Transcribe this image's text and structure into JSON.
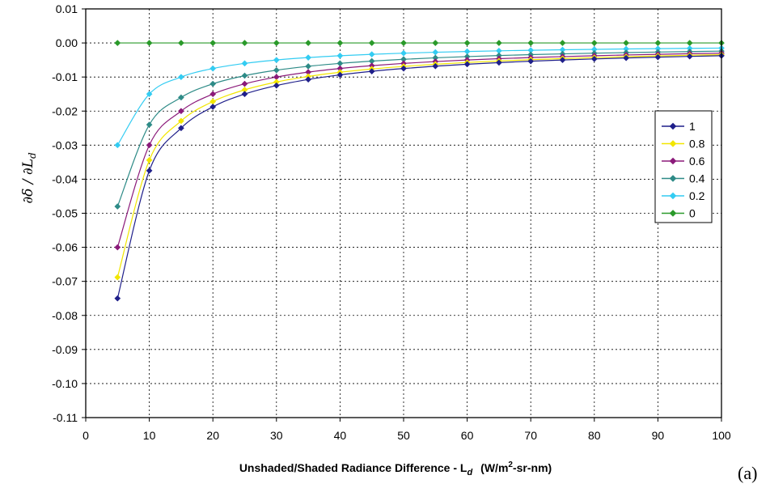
{
  "chart_data": {
    "type": "line",
    "xlabel": "Unshaded/Shaded Radiance Difference - L",
    "xlabel_sub": "d",
    "xlabel_unit_pre": "(W/m",
    "xlabel_unit_sup": "2",
    "xlabel_unit_post": "-sr-nm)",
    "ylabel": "∂δ / ∂L",
    "ylabel_sub": "d",
    "panel_label": "(a)",
    "xlim": [
      0,
      100
    ],
    "ylim": [
      -0.11,
      0.01
    ],
    "xticks": [
      0,
      10,
      20,
      30,
      40,
      50,
      60,
      70,
      80,
      90,
      100
    ],
    "xtick_labels": [
      "0",
      "10",
      "20",
      "30",
      "40",
      "50",
      "60",
      "70",
      "80",
      "90",
      "100"
    ],
    "yticks": [
      0.01,
      0.0,
      -0.01,
      -0.02,
      -0.03,
      -0.04,
      -0.05,
      -0.06,
      -0.07,
      -0.08,
      -0.09,
      -0.1,
      -0.11
    ],
    "ytick_labels": [
      "0.01",
      "0.00",
      "-0.01",
      "-0.02",
      "-0.03",
      "-0.04",
      "-0.05",
      "-0.06",
      "-0.07",
      "-0.08",
      "-0.09",
      "-0.10",
      "-0.11"
    ],
    "grid": true,
    "legend_position": "right",
    "x": [
      5,
      10,
      15,
      20,
      25,
      30,
      35,
      40,
      45,
      50,
      55,
      60,
      65,
      70,
      75,
      80,
      85,
      90,
      95,
      100
    ],
    "series": [
      {
        "name": "1",
        "color": "#1f1f8a",
        "values": [
          -0.075,
          -0.0375,
          -0.025,
          -0.01875,
          -0.015,
          -0.0125,
          -0.01071,
          -0.009375,
          -0.008333,
          -0.0075,
          -0.006818,
          -0.00625,
          -0.005769,
          -0.005357,
          -0.005,
          -0.004688,
          -0.004412,
          -0.004167,
          -0.003947,
          -0.00375
        ]
      },
      {
        "name": "0.8",
        "color": "#f2e600",
        "values": [
          -0.0688,
          -0.0344,
          -0.0229,
          -0.0172,
          -0.01376,
          -0.01147,
          -0.00983,
          -0.0086,
          -0.00764,
          -0.00688,
          -0.00625,
          -0.00573,
          -0.00529,
          -0.00491,
          -0.00459,
          -0.0043,
          -0.00405,
          -0.00382,
          -0.00362,
          -0.00344
        ]
      },
      {
        "name": "0.6",
        "color": "#8b1a7a",
        "values": [
          -0.06,
          -0.03,
          -0.02,
          -0.015,
          -0.012,
          -0.01,
          -0.00857,
          -0.0075,
          -0.006667,
          -0.006,
          -0.005455,
          -0.005,
          -0.004615,
          -0.004286,
          -0.004,
          -0.00375,
          -0.003529,
          -0.003333,
          -0.003158,
          -0.003
        ]
      },
      {
        "name": "0.4",
        "color": "#2e8b87",
        "values": [
          -0.048,
          -0.024,
          -0.016,
          -0.012,
          -0.0096,
          -0.008,
          -0.006857,
          -0.006,
          -0.005333,
          -0.0048,
          -0.004364,
          -0.004,
          -0.003692,
          -0.003429,
          -0.0032,
          -0.003,
          -0.002824,
          -0.002667,
          -0.002526,
          -0.0024
        ]
      },
      {
        "name": "0.2",
        "color": "#33ccf2",
        "values": [
          -0.03,
          -0.015,
          -0.01,
          -0.0075,
          -0.006,
          -0.005,
          -0.004286,
          -0.00375,
          -0.003333,
          -0.003,
          -0.002727,
          -0.0025,
          -0.002308,
          -0.002143,
          -0.002,
          -0.001875,
          -0.001765,
          -0.001667,
          -0.001579,
          -0.0015
        ]
      },
      {
        "name": "0",
        "color": "#2a9a2a",
        "values": [
          0,
          0,
          0,
          0,
          0,
          0,
          0,
          0,
          0,
          0,
          0,
          0,
          0,
          0,
          0,
          0,
          0,
          0,
          0,
          0
        ]
      }
    ]
  }
}
